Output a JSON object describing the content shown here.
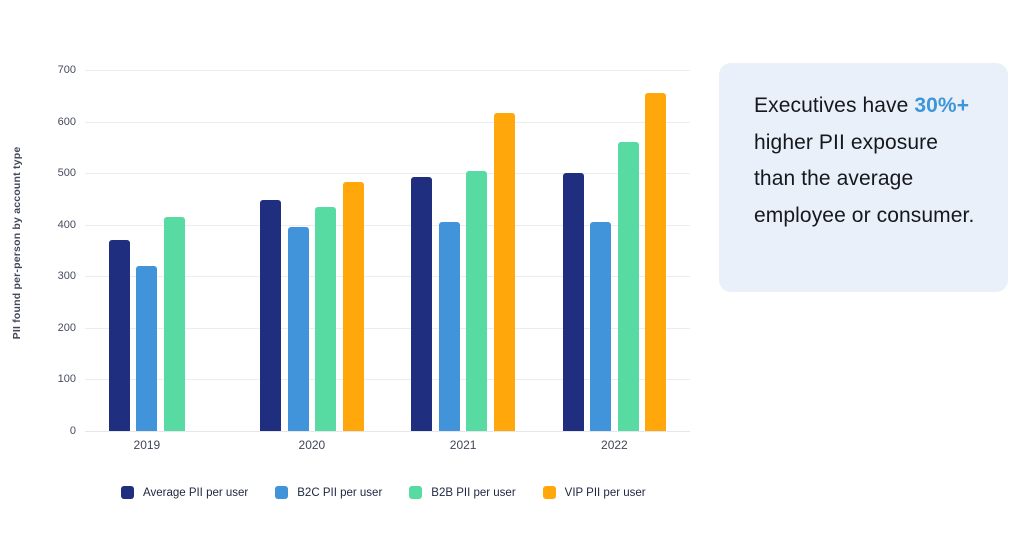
{
  "chart_data": {
    "type": "bar",
    "categories": [
      "2019",
      "2020",
      "2021",
      "2022"
    ],
    "series": [
      {
        "name": "Average PII per user",
        "color": "#202e80",
        "values": [
          370,
          448,
          493,
          500
        ]
      },
      {
        "name": "B2C PII per user",
        "color": "#4194d9",
        "values": [
          320,
          396,
          405,
          405
        ]
      },
      {
        "name": "B2B PII per user",
        "color": "#57dba3",
        "values": [
          415,
          434,
          505,
          560
        ]
      },
      {
        "name": "VIP PII per user",
        "color": "#ffa70b",
        "values": [
          null,
          483,
          616,
          655
        ]
      }
    ],
    "title": "",
    "xlabel": "",
    "ylabel": "PII found per-person by account type",
    "ylim": [
      0,
      700
    ],
    "ytick_step": 100,
    "grid": true,
    "legend_position": "bottom",
    "gridline_color": "#ececf1"
  },
  "callout": {
    "text_before": "Executives have ",
    "highlight": "30%+",
    "text_after": " higher PII exposure than the average employee or consumer.",
    "highlight_color": "#3d96d8",
    "background_color": "#e9f0f9"
  }
}
